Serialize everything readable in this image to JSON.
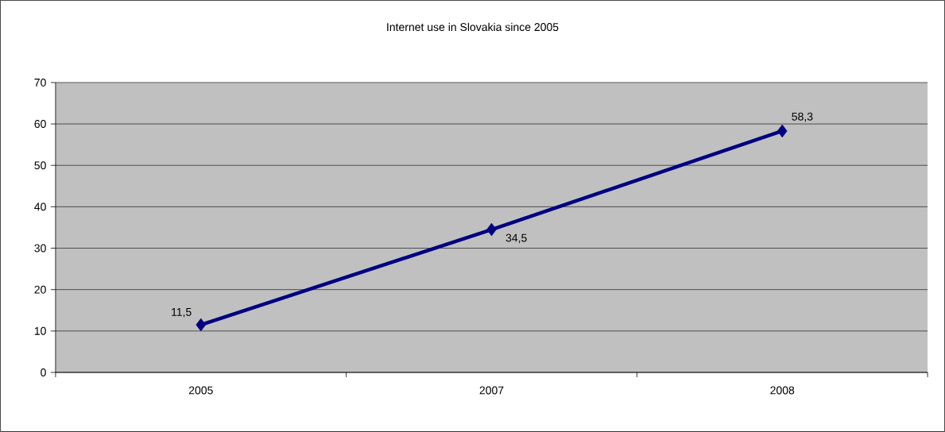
{
  "chart_data": {
    "type": "line",
    "title": "Internet use in Slovakia since 2005",
    "categories": [
      "2005",
      "2007",
      "2008"
    ],
    "series": [
      {
        "color": "#000080",
        "values": [
          11.5,
          34.5,
          58.3
        ]
      }
    ],
    "value_labels": [
      "11,5",
      "34,5",
      "58,3"
    ],
    "ylim": [
      0,
      70
    ],
    "yticks": [
      0,
      10,
      20,
      30,
      40,
      50,
      60,
      70
    ],
    "grid": "y",
    "marker": "diamond",
    "line_style": "solid"
  }
}
